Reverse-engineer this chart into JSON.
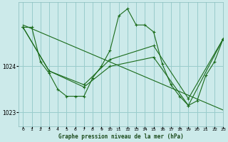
{
  "title": "Graphe pression niveau de la mer (hPa)",
  "bg_color": "#cceaea",
  "grid_color": "#99cccc",
  "line_color": "#1a6b1a",
  "xlim": [
    -0.5,
    23
  ],
  "ylim": [
    1022.7,
    1025.4
  ],
  "yticks": [
    1023,
    1024
  ],
  "xticks": [
    0,
    1,
    2,
    3,
    4,
    5,
    6,
    7,
    8,
    9,
    10,
    11,
    12,
    13,
    14,
    15,
    16,
    17,
    18,
    19,
    20,
    21,
    22,
    23
  ],
  "series1_x": [
    0,
    1,
    2,
    3,
    4,
    5,
    6,
    7,
    8,
    9,
    10,
    11,
    12,
    13,
    14,
    15,
    16,
    17,
    18,
    19,
    20,
    21,
    22,
    23
  ],
  "series1_y": [
    1024.85,
    1024.85,
    1024.1,
    1023.85,
    1023.5,
    1023.35,
    1023.35,
    1023.35,
    1023.75,
    1024.0,
    1024.35,
    1025.1,
    1025.25,
    1024.9,
    1024.9,
    1024.75,
    1024.05,
    1023.6,
    1023.35,
    1023.15,
    1023.25,
    1023.8,
    1024.1,
    1024.6
  ],
  "series2_x": [
    0,
    3,
    7,
    10,
    15,
    19,
    23
  ],
  "series2_y": [
    1024.85,
    1023.9,
    1023.55,
    1024.0,
    1024.2,
    1023.15,
    1024.6
  ],
  "series3_x": [
    0,
    3,
    7,
    10,
    15,
    19,
    23
  ],
  "series3_y": [
    1024.85,
    1023.9,
    1023.6,
    1024.15,
    1024.45,
    1023.3,
    1024.6
  ],
  "trend_x": [
    0,
    23
  ],
  "trend_y": [
    1024.9,
    1023.05
  ]
}
